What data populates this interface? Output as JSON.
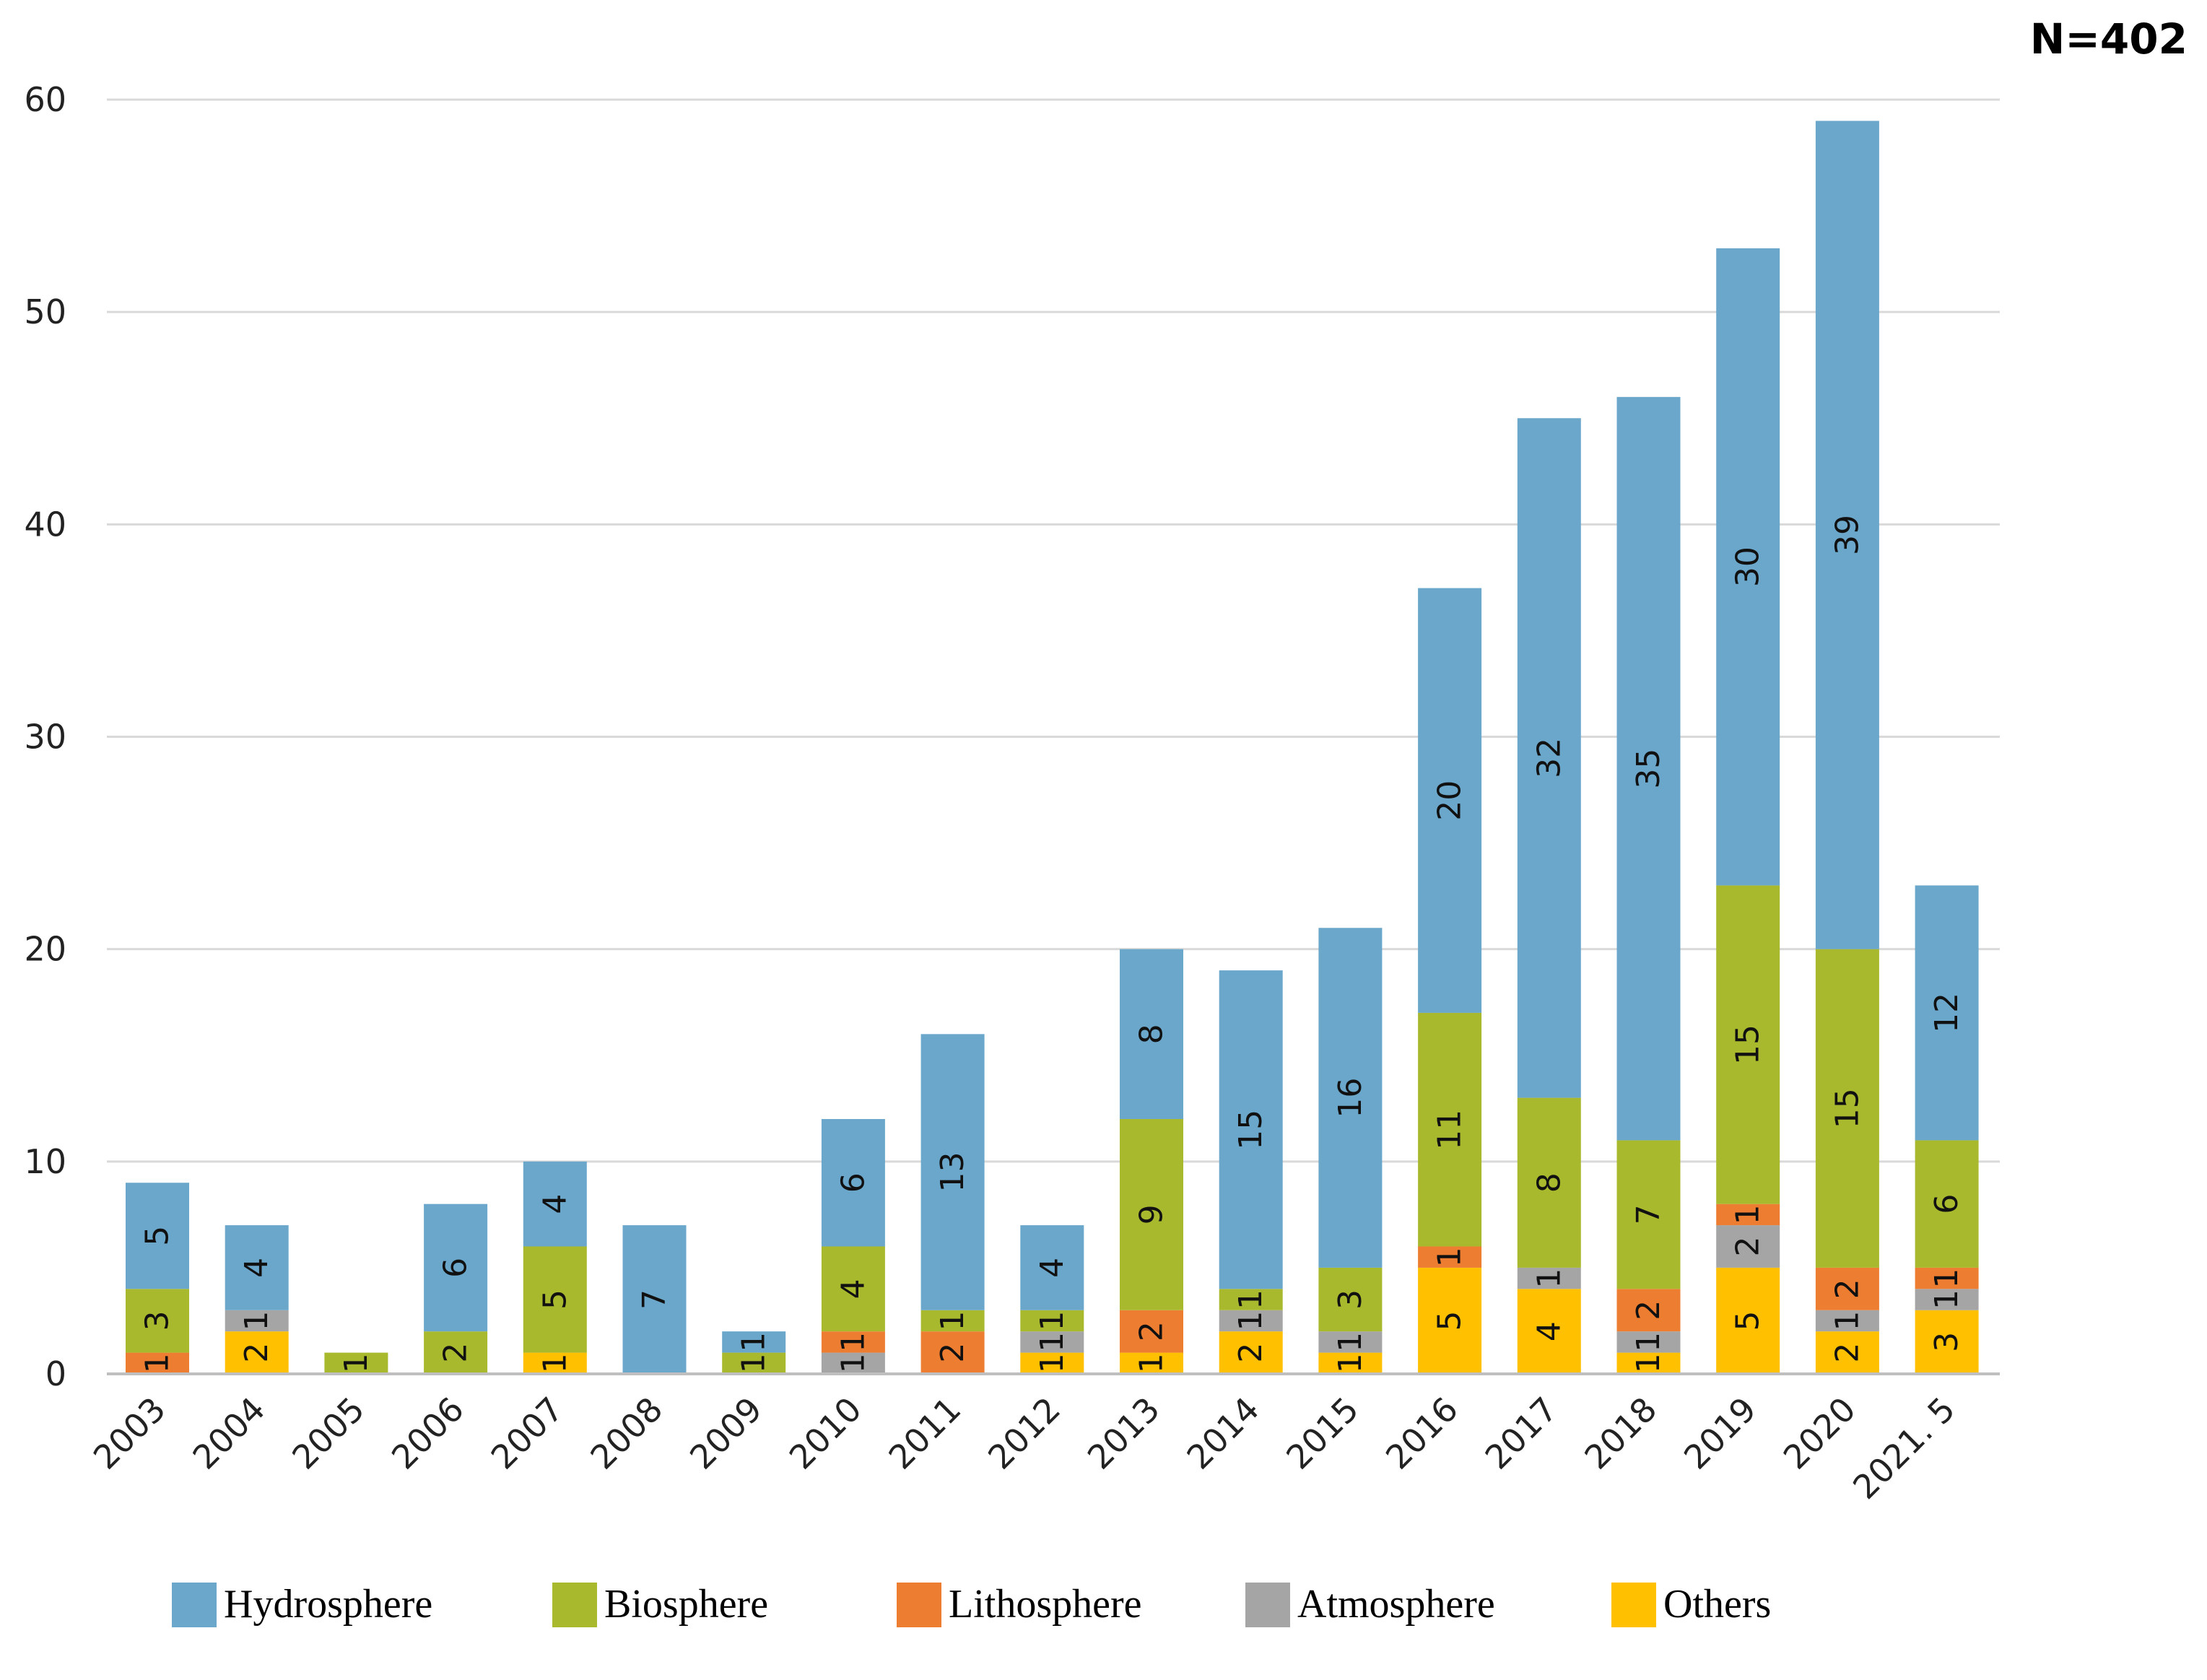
{
  "chart_data": {
    "type": "bar",
    "stacked": true,
    "title": "",
    "annotation": "N=402",
    "xlabel": "",
    "ylabel": "",
    "ylim": [
      0,
      60
    ],
    "yticks": [
      0,
      10,
      20,
      30,
      40,
      50,
      60
    ],
    "grid": true,
    "legend_position": "bottom",
    "categories": [
      "2003",
      "2004",
      "2005",
      "2006",
      "2007",
      "2008",
      "2009",
      "2010",
      "2011",
      "2012",
      "2013",
      "2014",
      "2015",
      "2016",
      "2017",
      "2018",
      "2019",
      "2020",
      "2021. 5"
    ],
    "series": [
      {
        "name": "Others",
        "color": "#FFC000",
        "values": [
          0,
          2,
          0,
          0,
          1,
          0,
          0,
          0,
          0,
          1,
          1,
          2,
          1,
          5,
          4,
          1,
          5,
          2,
          3
        ]
      },
      {
        "name": "Atmosphere",
        "color": "#A5A5A5",
        "values": [
          0,
          1,
          0,
          0,
          0,
          0,
          0,
          1,
          0,
          1,
          0,
          1,
          1,
          0,
          1,
          1,
          2,
          1,
          1
        ]
      },
      {
        "name": "Lithosphere",
        "color": "#ED7D31",
        "values": [
          1,
          0,
          0,
          0,
          0,
          0,
          0,
          1,
          2,
          0,
          2,
          0,
          0,
          1,
          0,
          2,
          1,
          2,
          1
        ]
      },
      {
        "name": "Biosphere",
        "color": "#A9B92E",
        "values": [
          3,
          0,
          1,
          2,
          5,
          0,
          1,
          4,
          1,
          1,
          9,
          1,
          3,
          11,
          8,
          7,
          15,
          15,
          6
        ]
      },
      {
        "name": "Hydrosphere",
        "color": "#6AA7CB",
        "values": [
          5,
          4,
          0,
          6,
          4,
          7,
          1,
          6,
          13,
          4,
          8,
          15,
          16,
          20,
          32,
          35,
          30,
          39,
          12
        ]
      }
    ],
    "legend_order": [
      "Hydrosphere",
      "Biosphere",
      "Lithosphere",
      "Atmosphere",
      "Others"
    ]
  }
}
